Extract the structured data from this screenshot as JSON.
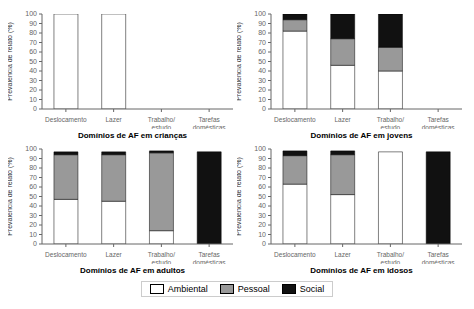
{
  "chart_data": [
    {
      "type": "bar",
      "stacked": true,
      "grid": false,
      "legend": "bottom",
      "xlabel": "Domínios de AF em crianças",
      "ylabel": "Prevalência de relato (%)",
      "categories": [
        "Deslocamento",
        "Lazer",
        "Trabalho/\nestudo",
        "Tarefas\ndomésticas"
      ],
      "series": [
        {
          "name": "Ambiental",
          "color": "#ffffff",
          "values": [
            100,
            100,
            0,
            0
          ]
        },
        {
          "name": "Pessoal",
          "color": "#999999",
          "values": [
            0,
            0,
            0,
            0
          ]
        },
        {
          "name": "Social",
          "color": "#111111",
          "values": [
            0,
            0,
            0,
            0
          ]
        }
      ],
      "ylim": [
        0,
        100
      ],
      "yticks": [
        0,
        10,
        20,
        30,
        40,
        50,
        60,
        70,
        80,
        90,
        100
      ]
    },
    {
      "type": "bar",
      "stacked": true,
      "grid": false,
      "legend": "bottom",
      "xlabel": "Domínios de AF em jovens",
      "ylabel": "Prevalência de relato (%)",
      "categories": [
        "Deslocamento",
        "Lazer",
        "Trabalho/\nestudo",
        "Tarefas\ndomésticas"
      ],
      "series": [
        {
          "name": "Ambiental",
          "color": "#ffffff",
          "values": [
            82,
            46,
            40,
            0
          ]
        },
        {
          "name": "Pessoal",
          "color": "#999999",
          "values": [
            12,
            28,
            25,
            0
          ]
        },
        {
          "name": "Social",
          "color": "#111111",
          "values": [
            6,
            26,
            35,
            0
          ]
        }
      ],
      "ylim": [
        0,
        100
      ],
      "yticks": [
        0,
        10,
        20,
        30,
        40,
        50,
        60,
        70,
        80,
        90,
        100
      ]
    },
    {
      "type": "bar",
      "stacked": true,
      "grid": false,
      "legend": "bottom",
      "xlabel": "Domínios de AF em adultos",
      "ylabel": "Prevalência de relato (%)",
      "categories": [
        "Deslocamento",
        "Lazer",
        "Trabalho/\nestudo",
        "Tarefas\ndomésticas"
      ],
      "series": [
        {
          "name": "Ambiental",
          "color": "#ffffff",
          "values": [
            47,
            45,
            14,
            0
          ]
        },
        {
          "name": "Pessoal",
          "color": "#999999",
          "values": [
            47,
            49,
            82,
            0
          ]
        },
        {
          "name": "Social",
          "color": "#111111",
          "values": [
            3,
            3,
            2,
            97
          ]
        }
      ],
      "ylim": [
        0,
        100
      ],
      "yticks": [
        0,
        10,
        20,
        30,
        40,
        50,
        60,
        70,
        80,
        90,
        100
      ]
    },
    {
      "type": "bar",
      "stacked": true,
      "grid": false,
      "legend": "bottom",
      "xlabel": "Domínios de AF em idosos",
      "ylabel": "Prevalência de relato (%)",
      "categories": [
        "Deslocamento",
        "Lazer",
        "Trabalho/\nestudo",
        "Tarefas\ndomésticas"
      ],
      "series": [
        {
          "name": "Ambiental",
          "color": "#ffffff",
          "values": [
            63,
            52,
            97,
            0
          ]
        },
        {
          "name": "Pessoal",
          "color": "#999999",
          "values": [
            30,
            42,
            0,
            0
          ]
        },
        {
          "name": "Social",
          "color": "#111111",
          "values": [
            5,
            4,
            0,
            97
          ]
        }
      ],
      "ylim": [
        0,
        100
      ],
      "yticks": [
        0,
        10,
        20,
        30,
        40,
        50,
        60,
        70,
        80,
        90,
        100
      ]
    }
  ]
}
